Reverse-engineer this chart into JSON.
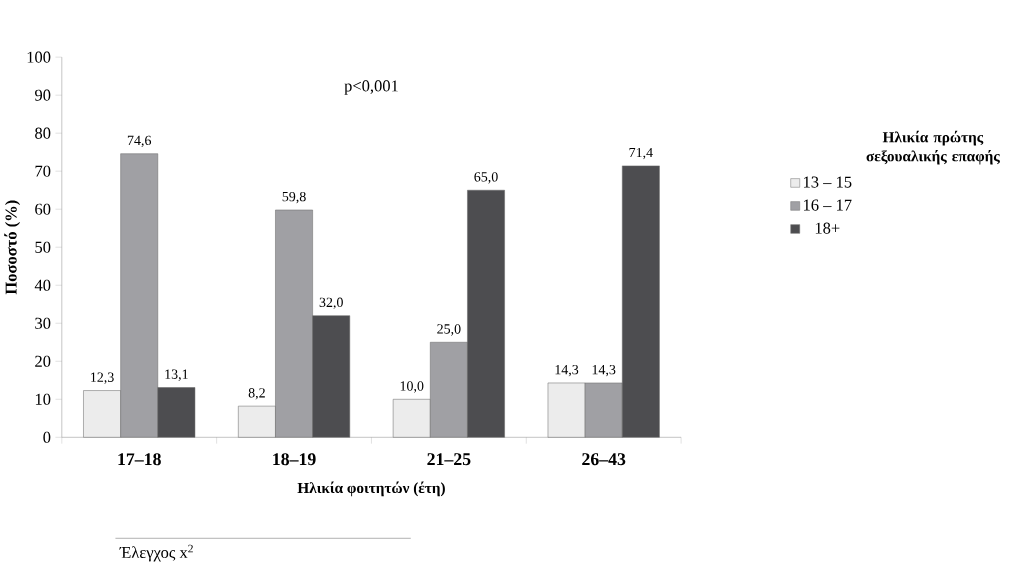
{
  "chart_data": {
    "type": "bar",
    "categories": [
      "17–18",
      "18–19",
      "21–25",
      "26–43"
    ],
    "xlabel": "Ηλικία φοιτητών (έτη)",
    "ylabel": "Ποσοστό (%)",
    "legend_title": "Ηλικία πρώτης σεξουαλικής επαφής",
    "legend": "right",
    "ylim": [
      0,
      100
    ],
    "yticks": [
      0,
      10,
      20,
      30,
      40,
      50,
      60,
      70,
      80,
      90,
      100
    ],
    "grid": false,
    "series": [
      {
        "name": "13 – 15",
        "color": "#ececec",
        "values": [
          12.3,
          8.2,
          10.0,
          14.3
        ],
        "value_labels": [
          "12,3",
          "8,2",
          "10,0",
          "14,3"
        ]
      },
      {
        "name": "16 – 17",
        "color": "#a0a0a4",
        "values": [
          74.6,
          59.8,
          25.0,
          14.3
        ],
        "value_labels": [
          "74,6",
          "59,8",
          "25,0",
          "14,3"
        ]
      },
      {
        "name": "18+",
        "color": "#4d4d50",
        "values": [
          13.1,
          32.0,
          65.0,
          71.4
        ],
        "value_labels": [
          "13,1",
          "32,0",
          "65,0",
          "71,4"
        ]
      }
    ],
    "annotations": [
      "p<0,001",
      "Έλεγχος x$^{2}$"
    ]
  }
}
